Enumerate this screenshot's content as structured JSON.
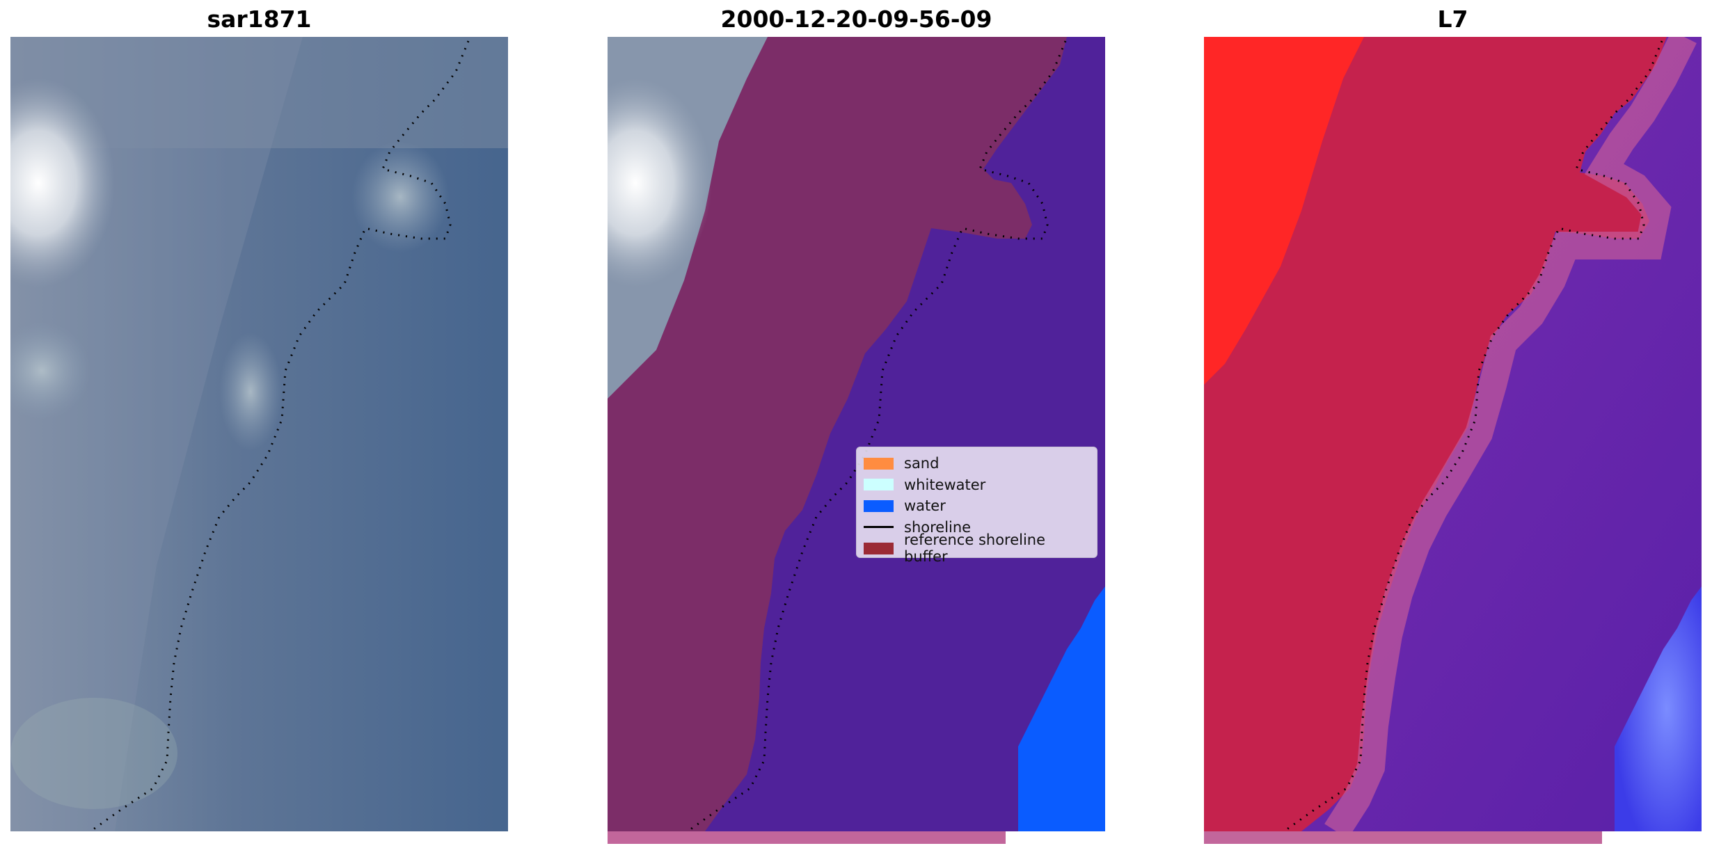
{
  "panels": [
    {
      "title": "sar1871"
    },
    {
      "title": "2000-12-20-09-56-09"
    },
    {
      "title": "L7"
    }
  ],
  "legend": {
    "items": [
      {
        "label": "sand",
        "color": "#ff8c40",
        "kind": "patch"
      },
      {
        "label": "whitewater",
        "color": "#ccffff",
        "kind": "patch"
      },
      {
        "label": "water",
        "color": "#0a5cff",
        "kind": "patch"
      },
      {
        "label": "shoreline",
        "color": "#000000",
        "kind": "line"
      },
      {
        "label": "reference shoreline buffer",
        "color": "#9b2a35",
        "kind": "patch"
      }
    ]
  },
  "colors": {
    "classified_land": "#7c2d68",
    "classified_water_region": "#50229a",
    "classified_water": "#0a5cff",
    "reference_buffer_strip": "#c2669b",
    "false_color_land": "#c5224d",
    "false_color_bright": "#ff2424",
    "false_color_water": "#6424b0",
    "rgb_sea": "#4a6a92",
    "rgb_land": "#7b8da8",
    "rgb_cloud": "#f2f4f6"
  }
}
